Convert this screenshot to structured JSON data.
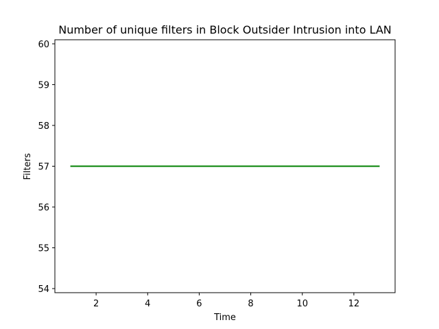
{
  "chart_data": {
    "type": "line",
    "title": "Number of unique filters in Block Outsider Intrusion into LAN",
    "xlabel": "Time",
    "ylabel": "Filters",
    "x": [
      1,
      2,
      3,
      4,
      5,
      6,
      7,
      8,
      9,
      10,
      11,
      12,
      13
    ],
    "series": [
      {
        "values": [
          57,
          57,
          57,
          57,
          57,
          57,
          57,
          57,
          57,
          57,
          57,
          57,
          57
        ],
        "color": "#008000"
      }
    ],
    "xlim": [
      0.4,
      13.6
    ],
    "ylim": [
      53.9,
      60.1
    ],
    "xticks": [
      2,
      4,
      6,
      8,
      10,
      12
    ],
    "yticks": [
      54,
      55,
      56,
      57,
      58,
      59,
      60
    ],
    "grid": false,
    "legend": "none"
  }
}
